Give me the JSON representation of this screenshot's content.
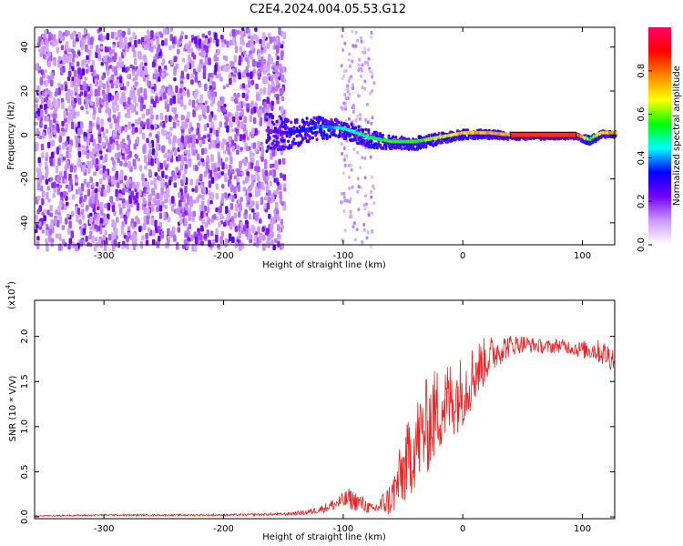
{
  "figure_title": "C2E4.2024.004.05.53.G12",
  "chart_data": [
    {
      "type": "heatmap",
      "title": "C2E4.2024.004.05.53.G12",
      "xlabel": "Height of straight line (km)",
      "ylabel": "Frequency (Hz)",
      "xlim": [
        -358,
        127
      ],
      "ylim": [
        -50,
        49
      ],
      "xticks": [
        -300,
        -200,
        -100,
        0,
        100
      ],
      "xtick_labels": [
        "-300",
        "-200",
        "-100",
        "0",
        "100"
      ],
      "yticks": [
        -40,
        -20,
        0,
        20,
        40
      ],
      "ytick_labels": [
        "-40",
        "-20",
        "0",
        "20",
        "40"
      ],
      "colorbar": {
        "label": "Normalized spectral amplitude",
        "range": [
          0,
          1
        ],
        "ticks": [
          0.0,
          0.2,
          0.4,
          0.6,
          0.8
        ],
        "tick_labels": [
          "0.0",
          "0.2",
          "0.4",
          "0.6",
          "0.8"
        ],
        "colors": [
          "#ffffff",
          "#cc99ff",
          "#7700ff",
          "#0000ff",
          "#00ffff",
          "#00ff00",
          "#ffff00",
          "#ff8800",
          "#ff0000",
          "#ff0066"
        ]
      },
      "noise_region": {
        "x": [
          -358,
          -150
        ],
        "y": [
          -50,
          49
        ],
        "amplitude": 0.2
      },
      "noise_streak": {
        "x": [
          -103,
          -75
        ],
        "y": [
          -50,
          49
        ],
        "amplitude": 0.1
      },
      "signal_track": {
        "x": [
          -165,
          -150,
          -135,
          -120,
          -100,
          -80,
          -60,
          -40,
          -20,
          0,
          20,
          40,
          60,
          80,
          95,
          105,
          115,
          127
        ],
        "y": [
          2,
          1,
          2,
          4,
          3,
          -1,
          -3,
          -3,
          -1,
          1,
          1,
          0,
          0,
          0,
          0,
          -2,
          1,
          1
        ],
        "amplitude": [
          0.2,
          0.3,
          0.35,
          0.4,
          0.5,
          0.55,
          0.6,
          0.6,
          0.7,
          0.75,
          0.8,
          0.85,
          0.9,
          0.9,
          0.9,
          0.6,
          0.75,
          0.85
        ],
        "spread_hz": [
          9,
          7,
          6,
          5,
          4,
          4,
          3,
          3,
          2.5,
          2,
          2,
          1.5,
          1.2,
          1.2,
          1.2,
          2,
          1.5,
          1.5
        ]
      }
    },
    {
      "type": "line",
      "xlabel": "Height of straight line (km)",
      "ylabel": "SNR (10 * V/V)",
      "y_multiplier_label": "(x10",
      "y_multiplier_exponent": "4",
      "color": "#ee2222",
      "xlim": [
        -358,
        127
      ],
      "ylim": [
        -0.02,
        2.4
      ],
      "xticks": [
        -300,
        -200,
        -100,
        0,
        100
      ],
      "xtick_labels": [
        "-300",
        "-200",
        "-100",
        "0",
        "100"
      ],
      "yticks": [
        0.0,
        0.5,
        1.0,
        1.5,
        2.0
      ],
      "ytick_labels": [
        "0.0",
        "0.5",
        "1.0",
        "1.5",
        "2.0"
      ],
      "x": [
        -358,
        -300,
        -250,
        -200,
        -150,
        -130,
        -115,
        -105,
        -95,
        -85,
        -75,
        -60,
        -50,
        -40,
        -30,
        -20,
        -10,
        0,
        10,
        20,
        30,
        40,
        50,
        60,
        70,
        80,
        90,
        100,
        110,
        120,
        127
      ],
      "y": [
        0.01,
        0.02,
        0.02,
        0.02,
        0.03,
        0.05,
        0.1,
        0.15,
        0.2,
        0.15,
        0.08,
        0.2,
        0.5,
        0.8,
        1.0,
        1.2,
        1.3,
        1.4,
        1.6,
        1.75,
        1.85,
        1.9,
        1.92,
        1.9,
        1.88,
        1.9,
        1.88,
        1.85,
        1.85,
        1.8,
        1.75
      ],
      "noise": [
        0.005,
        0.01,
        0.01,
        0.01,
        0.015,
        0.03,
        0.05,
        0.08,
        0.12,
        0.1,
        0.05,
        0.2,
        0.4,
        0.5,
        0.55,
        0.5,
        0.45,
        0.4,
        0.35,
        0.25,
        0.18,
        0.12,
        0.1,
        0.08,
        0.08,
        0.08,
        0.08,
        0.1,
        0.12,
        0.15,
        0.15
      ]
    }
  ]
}
